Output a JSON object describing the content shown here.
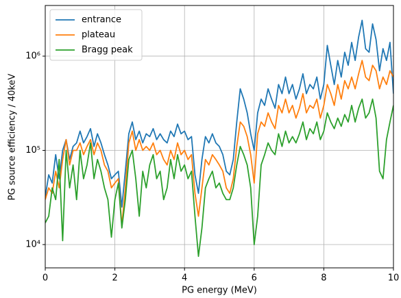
{
  "chart_data": {
    "type": "line",
    "xlabel": "PG energy (MeV)",
    "ylabel": "PG source efficiency / 40keV",
    "log_y": true,
    "grid": true,
    "legend_loc": "upper left",
    "xlim": [
      0,
      10
    ],
    "xticks": [
      0,
      2,
      4,
      6,
      8,
      10
    ],
    "ylim": [
      5660,
      3450000
    ],
    "yticks": [
      {
        "value": 10000,
        "label": "10⁴"
      },
      {
        "value": 100000,
        "label": "10⁵"
      },
      {
        "value": 1000000,
        "label": "10⁶"
      }
    ],
    "x": [
      0,
      0.1,
      0.2,
      0.3,
      0.4,
      0.5,
      0.6,
      0.7,
      0.8,
      0.9,
      1,
      1.1,
      1.2,
      1.3,
      1.4,
      1.5,
      1.6,
      1.7,
      1.8,
      1.9,
      2,
      2.1,
      2.2,
      2.3,
      2.4,
      2.5,
      2.6,
      2.7,
      2.8,
      2.9,
      3,
      3.1,
      3.2,
      3.3,
      3.4,
      3.5,
      3.6,
      3.7,
      3.8,
      3.9,
      4,
      4.1,
      4.2,
      4.3,
      4.4,
      4.5,
      4.6,
      4.7,
      4.8,
      4.9,
      5,
      5.1,
      5.2,
      5.3,
      5.4,
      5.5,
      5.6,
      5.7,
      5.8,
      5.9,
      6,
      6.1,
      6.2,
      6.3,
      6.4,
      6.5,
      6.6,
      6.7,
      6.8,
      6.9,
      7,
      7.1,
      7.2,
      7.3,
      7.4,
      7.5,
      7.6,
      7.7,
      7.8,
      7.9,
      8,
      8.1,
      8.2,
      8.3,
      8.4,
      8.5,
      8.6,
      8.7,
      8.8,
      8.9,
      9,
      9.1,
      9.2,
      9.3,
      9.4,
      9.5,
      9.6,
      9.7,
      9.8,
      9.9,
      10
    ],
    "series": [
      {
        "name": "entrance",
        "color": "#1f77b4",
        "values": [
          32000,
          55000,
          45000,
          90000,
          50000,
          100000,
          130000,
          80000,
          110000,
          120000,
          160000,
          120000,
          140000,
          170000,
          110000,
          150000,
          120000,
          90000,
          70000,
          50000,
          55000,
          60000,
          25000,
          60000,
          150000,
          200000,
          130000,
          160000,
          120000,
          150000,
          140000,
          170000,
          130000,
          150000,
          130000,
          120000,
          160000,
          140000,
          190000,
          150000,
          160000,
          130000,
          140000,
          55000,
          35000,
          80000,
          140000,
          120000,
          150000,
          120000,
          110000,
          90000,
          60000,
          55000,
          80000,
          200000,
          450000,
          350000,
          250000,
          150000,
          100000,
          250000,
          350000,
          300000,
          450000,
          350000,
          280000,
          500000,
          400000,
          600000,
          400000,
          500000,
          350000,
          450000,
          650000,
          400000,
          500000,
          450000,
          600000,
          350000,
          500000,
          1300000,
          800000,
          500000,
          900000,
          600000,
          1100000,
          800000,
          1400000,
          900000,
          1600000,
          2400000,
          1200000,
          1100000,
          2200000,
          1500000,
          700000,
          1200000,
          900000,
          1400000,
          400000
        ]
      },
      {
        "name": "plateau",
        "color": "#ff7f0e",
        "values": [
          30000,
          40000,
          35000,
          60000,
          40000,
          80000,
          130000,
          70000,
          100000,
          100000,
          120000,
          90000,
          110000,
          130000,
          90000,
          120000,
          100000,
          70000,
          60000,
          40000,
          45000,
          50000,
          16000,
          40000,
          120000,
          160000,
          100000,
          130000,
          100000,
          110000,
          100000,
          120000,
          90000,
          100000,
          80000,
          70000,
          100000,
          80000,
          120000,
          90000,
          100000,
          80000,
          90000,
          35000,
          20000,
          40000,
          80000,
          70000,
          90000,
          80000,
          70000,
          60000,
          40000,
          35000,
          50000,
          110000,
          200000,
          180000,
          140000,
          90000,
          45000,
          150000,
          200000,
          180000,
          250000,
          200000,
          170000,
          300000,
          250000,
          350000,
          250000,
          300000,
          220000,
          280000,
          400000,
          250000,
          300000,
          280000,
          350000,
          220000,
          300000,
          500000,
          400000,
          300000,
          500000,
          350000,
          550000,
          450000,
          600000,
          450000,
          650000,
          900000,
          600000,
          550000,
          800000,
          700000,
          450000,
          600000,
          500000,
          700000,
          600000
        ]
      },
      {
        "name": "Bragg peak",
        "color": "#2ca02c",
        "values": [
          17000,
          20000,
          40000,
          30000,
          80000,
          11000,
          100000,
          40000,
          70000,
          30000,
          100000,
          50000,
          70000,
          120000,
          50000,
          80000,
          60000,
          40000,
          30000,
          12000,
          30000,
          45000,
          15000,
          30000,
          80000,
          100000,
          50000,
          20000,
          60000,
          40000,
          70000,
          90000,
          50000,
          60000,
          30000,
          40000,
          80000,
          50000,
          90000,
          60000,
          70000,
          50000,
          60000,
          20000,
          7500,
          15000,
          40000,
          50000,
          60000,
          40000,
          45000,
          35000,
          30000,
          30000,
          40000,
          70000,
          110000,
          90000,
          70000,
          40000,
          10000,
          20000,
          70000,
          90000,
          120000,
          100000,
          90000,
          150000,
          110000,
          160000,
          120000,
          140000,
          120000,
          150000,
          200000,
          130000,
          170000,
          150000,
          200000,
          130000,
          160000,
          250000,
          200000,
          170000,
          220000,
          180000,
          240000,
          200000,
          300000,
          200000,
          280000,
          350000,
          220000,
          250000,
          350000,
          220000,
          60000,
          50000,
          130000,
          200000,
          300000
        ]
      }
    ]
  }
}
